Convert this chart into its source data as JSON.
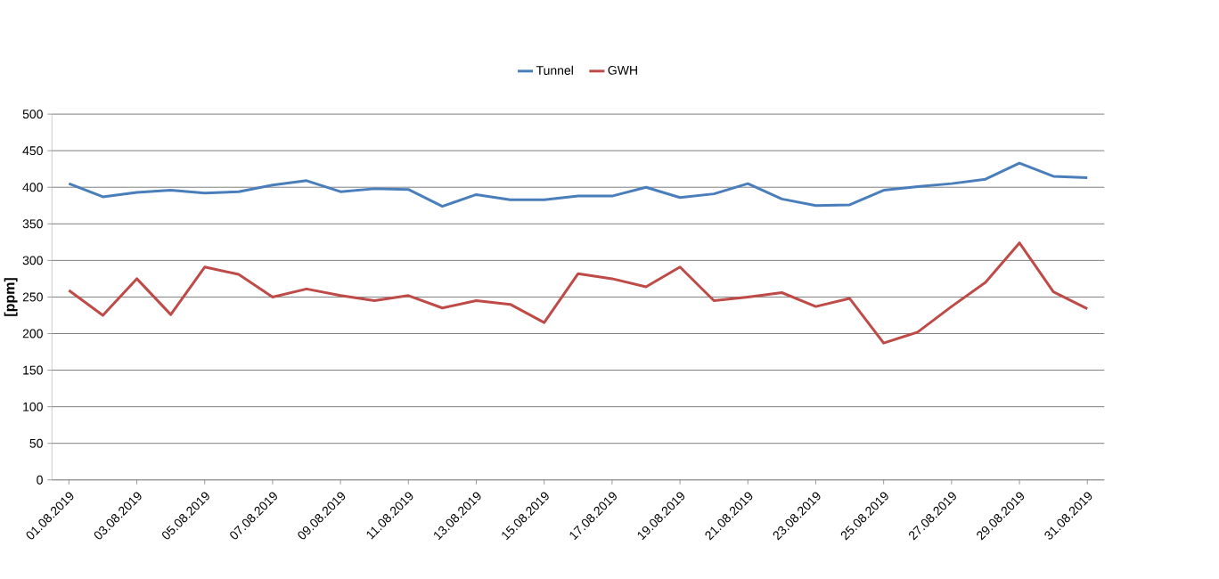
{
  "chart_data": {
    "type": "line",
    "ylabel": "[ppm]",
    "categories": [
      "01.08.2019",
      null,
      "03.08.2019",
      null,
      "05.08.2019",
      null,
      "07.08.2019",
      null,
      "09.08.2019",
      null,
      "11.08.2019",
      null,
      "13.08.2019",
      null,
      "15.08.2019",
      null,
      "17.08.2019",
      null,
      "19.08.2019",
      null,
      "21.08.2019",
      null,
      "23.08.2019",
      null,
      "25.08.2019",
      null,
      "27.08.2019",
      null,
      "29.08.2019",
      null,
      "31.08.2019"
    ],
    "series": [
      {
        "name": "Tunnel",
        "color": "#4a7ebb",
        "values": [
          405,
          387,
          393,
          396,
          392,
          394,
          403,
          409,
          394,
          398,
          397,
          374,
          390,
          383,
          383,
          388,
          388,
          400,
          386,
          391,
          405,
          384,
          375,
          376,
          396,
          401,
          405,
          411,
          433,
          415,
          413
        ]
      },
      {
        "name": "GWH",
        "color": "#be4b48",
        "values": [
          259,
          225,
          275,
          226,
          291,
          281,
          250,
          261,
          252,
          245,
          252,
          235,
          245,
          240,
          215,
          282,
          275,
          264,
          291,
          245,
          250,
          256,
          237,
          248,
          187,
          202,
          237,
          270,
          324,
          257,
          234
        ]
      }
    ],
    "ylim": [
      0,
      500
    ],
    "yticks": [
      0,
      50,
      100,
      150,
      200,
      250,
      300,
      350,
      400,
      450,
      500
    ],
    "grid": "y",
    "legend": "top",
    "marker": "none",
    "line_style": "solid"
  }
}
